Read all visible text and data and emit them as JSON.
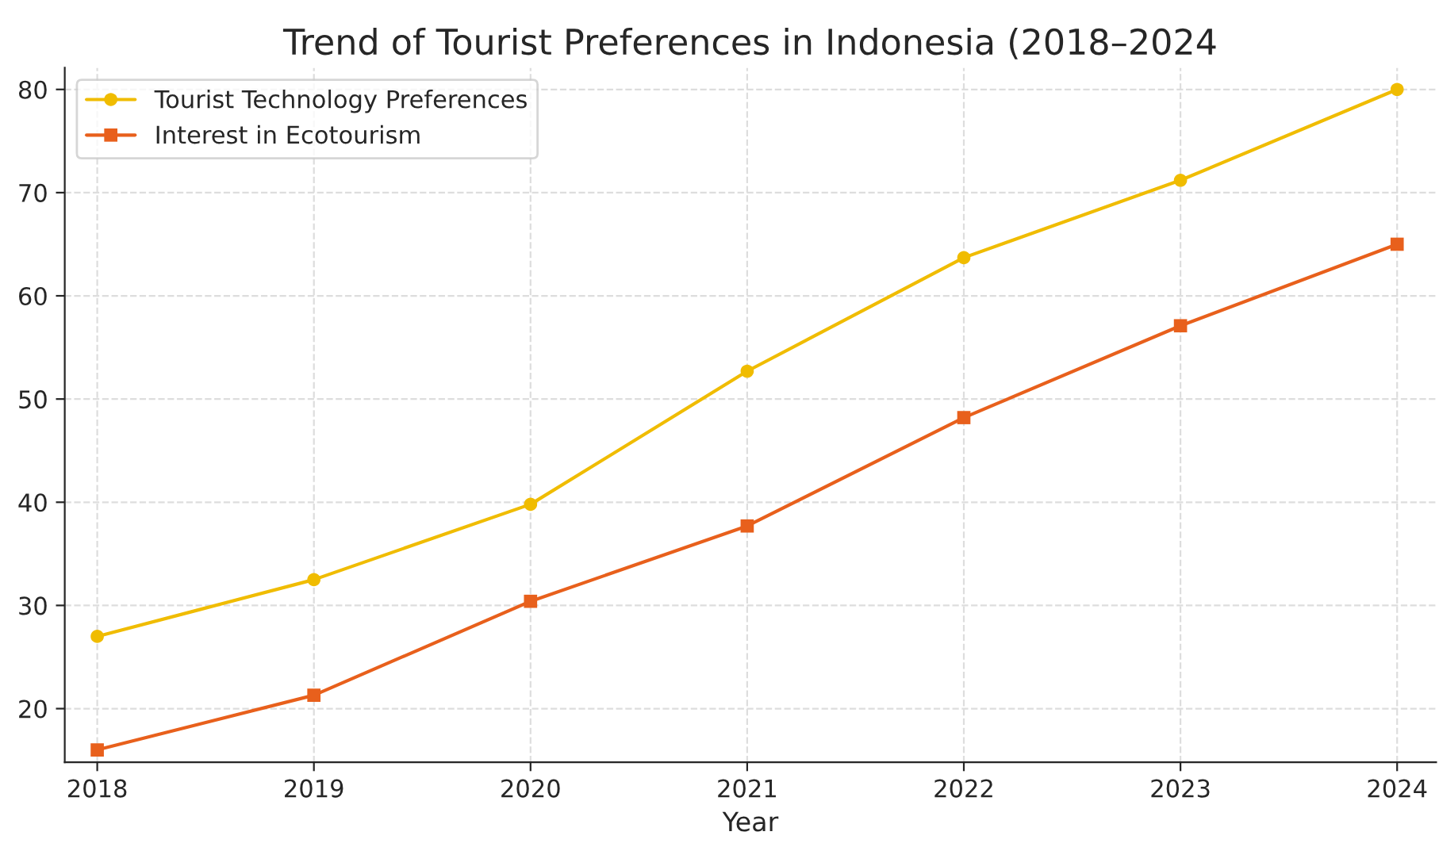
{
  "chart_data": {
    "type": "line",
    "title": "Trend of Tourist Preferences in Indonesia (2018–2024",
    "xlabel": "Year",
    "x": [
      2018,
      2019,
      2020,
      2021,
      2022,
      2023,
      2024
    ],
    "series": [
      {
        "name": "Tourist Technology Preferences",
        "color": "#f0bc00",
        "marker": "circle",
        "values": [
          27.0,
          32.5,
          39.8,
          52.7,
          63.7,
          71.2,
          80.0
        ]
      },
      {
        "name": "Interest in Ecotourism",
        "color": "#e8601c",
        "marker": "square",
        "values": [
          16.0,
          21.3,
          30.4,
          37.7,
          48.2,
          57.1,
          65.0
        ]
      }
    ],
    "xlim": [
      2017.85,
      2024.18
    ],
    "xticks": [
      2018,
      2019,
      2020,
      2021,
      2022,
      2023,
      2024
    ],
    "ylim": [
      14.8,
      82.1
    ],
    "yticks": [
      20,
      30,
      40,
      50,
      60,
      70,
      80
    ],
    "grid": true,
    "legend": "top left",
    "line_style": "solid"
  }
}
